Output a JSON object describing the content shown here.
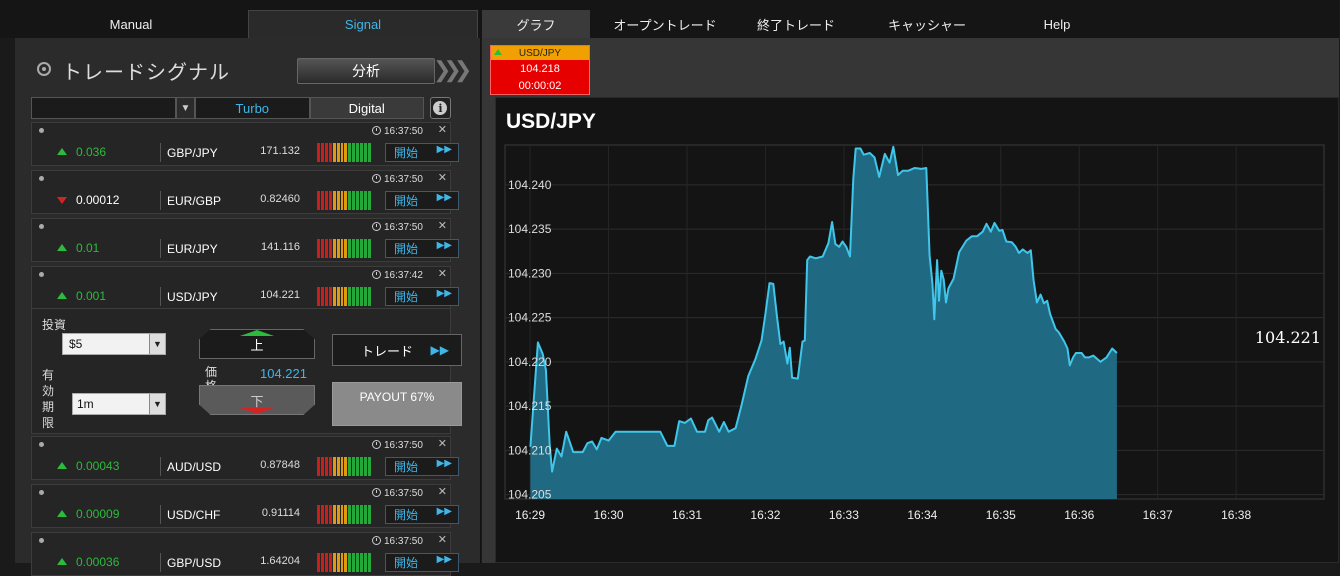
{
  "nav": {
    "manual": "Manual",
    "signal": "Signal",
    "items": [
      "グラフ",
      "オープントレード",
      "終了トレード",
      "キャッシャー",
      "Help"
    ]
  },
  "left": {
    "title": "トレードシグナル",
    "analyze": "分析",
    "filter": {
      "turbo": "Turbo",
      "digital": "Digital"
    },
    "signals": [
      {
        "dir": "up",
        "change": "0.036",
        "pair": "GBP/JPY",
        "price": "171.132",
        "time": "16:37:50"
      },
      {
        "dir": "down",
        "change": "0.00012",
        "pair": "EUR/GBP",
        "price": "0.82460",
        "time": "16:37:50"
      },
      {
        "dir": "up",
        "change": "0.01",
        "pair": "EUR/JPY",
        "price": "141.116",
        "time": "16:37:50"
      },
      {
        "dir": "up",
        "change": "0.001",
        "pair": "USD/JPY",
        "price": "104.221",
        "time": "16:37:42"
      },
      {
        "dir": "up",
        "change": "0.00043",
        "pair": "AUD/USD",
        "price": "0.87848",
        "time": "16:37:50"
      },
      {
        "dir": "up",
        "change": "0.00009",
        "pair": "USD/CHF",
        "price": "0.91114",
        "time": "16:37:50"
      },
      {
        "dir": "up",
        "change": "0.00036",
        "pair": "GBP/USD",
        "price": "1.64204",
        "time": "16:37:50"
      }
    ],
    "start_label": "開始",
    "trade": {
      "invest_label": "投資",
      "invest_value": "$5",
      "expiry_label": "有効期限",
      "expiry_value": "1m",
      "up": "上",
      "down": "下",
      "price_label": "価格",
      "price_value": "104.221",
      "trade_button": "トレード",
      "payout": "PAYOUT 67%"
    }
  },
  "ticker": {
    "pair": "USD/JPY",
    "price": "104.218",
    "timer": "00:00:02"
  },
  "colors": {
    "accent": "#3fb6e8",
    "up": "#2cbb3c",
    "down": "#d32424",
    "chart_fill": "#1f6a82",
    "chart_line": "#3fc6ea"
  },
  "chart_data": {
    "type": "area",
    "title": "USD/JPY",
    "current_label": "104.221",
    "x_ticks": [
      "16:29",
      "16:30",
      "16:31",
      "16:32",
      "16:33",
      "16:34",
      "16:35",
      "16:36",
      "16:37",
      "16:38"
    ],
    "y_ticks": [
      "104.205",
      "104.210",
      "104.215",
      "104.220",
      "104.225",
      "104.230",
      "104.235",
      "104.240"
    ],
    "ylim": [
      104.2045,
      104.2445
    ],
    "xlim": [
      16.478,
      16.652
    ],
    "x_unit": "hours",
    "series": [
      {
        "values": [
          [
            16.4834,
            104.2104
          ],
          [
            16.485,
            104.2222
          ],
          [
            16.486,
            104.2209
          ],
          [
            16.4867,
            104.2191
          ],
          [
            16.4875,
            104.2106
          ],
          [
            16.488,
            104.2076
          ],
          [
            16.489,
            104.2102
          ],
          [
            16.49,
            104.2093
          ],
          [
            16.491,
            104.2121
          ],
          [
            16.4925,
            104.2098
          ],
          [
            16.4945,
            104.2098
          ],
          [
            16.4955,
            104.2108
          ],
          [
            16.4965,
            104.211
          ],
          [
            16.4975,
            104.2101
          ],
          [
            16.4985,
            104.2114
          ],
          [
            16.5,
            104.2111
          ],
          [
            16.5015,
            104.2121
          ],
          [
            16.504,
            104.2121
          ],
          [
            16.5075,
            104.2121
          ],
          [
            16.511,
            104.2121
          ],
          [
            16.5125,
            104.2105
          ],
          [
            16.514,
            104.2105
          ],
          [
            16.515,
            104.2133
          ],
          [
            16.5162,
            104.2131
          ],
          [
            16.5175,
            104.2136
          ],
          [
            16.5188,
            104.2121
          ],
          [
            16.5205,
            104.2121
          ],
          [
            16.5212,
            104.2134
          ],
          [
            16.522,
            104.2137
          ],
          [
            16.5235,
            104.2121
          ],
          [
            16.5245,
            104.2132
          ],
          [
            16.5255,
            104.2121
          ],
          [
            16.527,
            104.2125
          ],
          [
            16.5282,
            104.215
          ],
          [
            16.5297,
            104.2184
          ],
          [
            16.5312,
            104.2203
          ],
          [
            16.5325,
            104.2224
          ],
          [
            16.5333,
            104.2253
          ],
          [
            16.5342,
            104.2289
          ],
          [
            16.535,
            104.2288
          ],
          [
            16.5358,
            104.225
          ],
          [
            16.5365,
            104.222
          ],
          [
            16.5372,
            104.2223
          ],
          [
            16.538,
            104.2198
          ],
          [
            16.5385,
            104.2216
          ],
          [
            16.539,
            104.2182
          ],
          [
            16.5402,
            104.2181
          ],
          [
            16.5412,
            104.2223
          ],
          [
            16.5417,
            104.2224
          ],
          [
            16.5422,
            104.2315
          ],
          [
            16.5428,
            104.2319
          ],
          [
            16.544,
            104.2317
          ],
          [
            16.5455,
            104.2319
          ],
          [
            16.5467,
            104.2334
          ],
          [
            16.5475,
            104.2358
          ],
          [
            16.5482,
            104.2333
          ],
          [
            16.549,
            104.233
          ],
          [
            16.5497,
            104.2336
          ],
          [
            16.5505,
            104.233
          ],
          [
            16.5513,
            104.2319
          ],
          [
            16.552,
            104.2407
          ],
          [
            16.5525,
            104.2441
          ],
          [
            16.5535,
            104.2441
          ],
          [
            16.5542,
            104.2434
          ],
          [
            16.5555,
            104.2436
          ],
          [
            16.5565,
            104.2431
          ],
          [
            16.5575,
            104.2409
          ],
          [
            16.5587,
            104.2435
          ],
          [
            16.5597,
            104.2425
          ],
          [
            16.5605,
            104.2443
          ],
          [
            16.5615,
            104.2411
          ],
          [
            16.5625,
            104.2416
          ],
          [
            16.5637,
            104.2416
          ],
          [
            16.565,
            104.2419
          ],
          [
            16.5665,
            104.2418
          ],
          [
            16.5675,
            104.2419
          ],
          [
            16.5682,
            104.232
          ],
          [
            16.5688,
            104.2289
          ],
          [
            16.5692,
            104.2248
          ],
          [
            16.5698,
            104.2315
          ],
          [
            16.5702,
            104.2269
          ],
          [
            16.5707,
            104.2303
          ],
          [
            16.5712,
            104.2293
          ],
          [
            16.5717,
            104.2267
          ],
          [
            16.5722,
            104.2283
          ],
          [
            16.5733,
            104.2294
          ],
          [
            16.5745,
            104.2324
          ],
          [
            16.576,
            104.2337
          ],
          [
            16.5772,
            104.2342
          ],
          [
            16.5783,
            104.2342
          ],
          [
            16.5795,
            104.2347
          ],
          [
            16.5803,
            104.2356
          ],
          [
            16.5812,
            104.2347
          ],
          [
            16.582,
            104.2357
          ],
          [
            16.583,
            104.2348
          ],
          [
            16.5837,
            104.2349
          ],
          [
            16.5845,
            104.2336
          ],
          [
            16.5857,
            104.2335
          ],
          [
            16.5865,
            104.233
          ],
          [
            16.5872,
            104.2323
          ],
          [
            16.588,
            104.2327
          ],
          [
            16.589,
            104.2323
          ],
          [
            16.5897,
            104.2326
          ],
          [
            16.5903,
            104.2292
          ],
          [
            16.591,
            104.2267
          ],
          [
            16.5918,
            104.2276
          ],
          [
            16.5925,
            104.2266
          ],
          [
            16.5932,
            104.2269
          ],
          [
            16.5938,
            104.2254
          ],
          [
            16.595,
            104.2237
          ],
          [
            16.5957,
            104.2233
          ],
          [
            16.5968,
            104.2223
          ],
          [
            16.5975,
            104.2215
          ],
          [
            16.598,
            104.2196
          ],
          [
            16.5987,
            104.2205
          ],
          [
            16.5993,
            104.221
          ],
          [
            16.6005,
            104.221
          ],
          [
            16.6012,
            104.2205
          ],
          [
            16.602,
            104.2205
          ],
          [
            16.603,
            104.2207
          ],
          [
            16.6045,
            104.22
          ],
          [
            16.6058,
            104.2205
          ],
          [
            16.607,
            104.2215
          ],
          [
            16.608,
            104.221
          ]
        ]
      }
    ]
  }
}
